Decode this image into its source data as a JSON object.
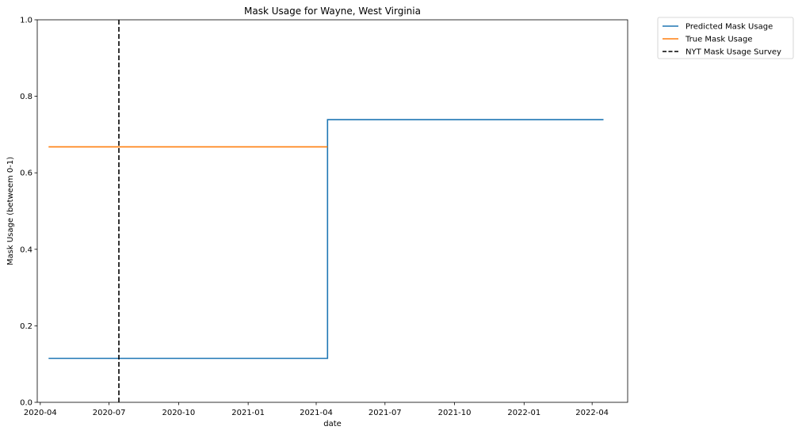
{
  "chart_data": {
    "type": "line",
    "title": "Mask Usage for Wayne, West Virginia",
    "xlabel": "date",
    "ylabel": "Mask Usage (betweem 0-1)",
    "xlim": [
      "2020-03-28",
      "2022-05-18"
    ],
    "ylim": [
      0,
      1
    ],
    "x_ticks": [
      "2020-04-01",
      "2020-07-01",
      "2020-10-01",
      "2021-01-01",
      "2021-04-01",
      "2021-07-01",
      "2021-10-01",
      "2022-01-01",
      "2022-04-01"
    ],
    "x_tick_labels": [
      "2020-04",
      "2020-07",
      "2020-10",
      "2021-01",
      "2021-04",
      "2021-07",
      "2021-10",
      "2022-01",
      "2022-04"
    ],
    "y_ticks": [
      0.0,
      0.2,
      0.4,
      0.6,
      0.8,
      1.0
    ],
    "y_tick_labels": [
      "0.0",
      "0.2",
      "0.4",
      "0.6",
      "0.8",
      "1.0"
    ],
    "grid": false,
    "legend_position": "outside upper right",
    "series": [
      {
        "name": "Predicted Mask Usage",
        "color": "#1f77b4",
        "style": "solid",
        "x": [
          "2020-04-12",
          "2021-04-16",
          "2021-04-16",
          "2022-04-16"
        ],
        "y": [
          0.115,
          0.115,
          0.739,
          0.739
        ]
      },
      {
        "name": "True Mask Usage",
        "color": "#ff7f0e",
        "style": "solid",
        "x": [
          "2020-04-12",
          "2021-04-16"
        ],
        "y": [
          0.668,
          0.668
        ]
      },
      {
        "name": "NYT Mask Usage Survey",
        "color": "#000000",
        "style": "dashed",
        "vline_x": "2020-07-14"
      }
    ]
  }
}
